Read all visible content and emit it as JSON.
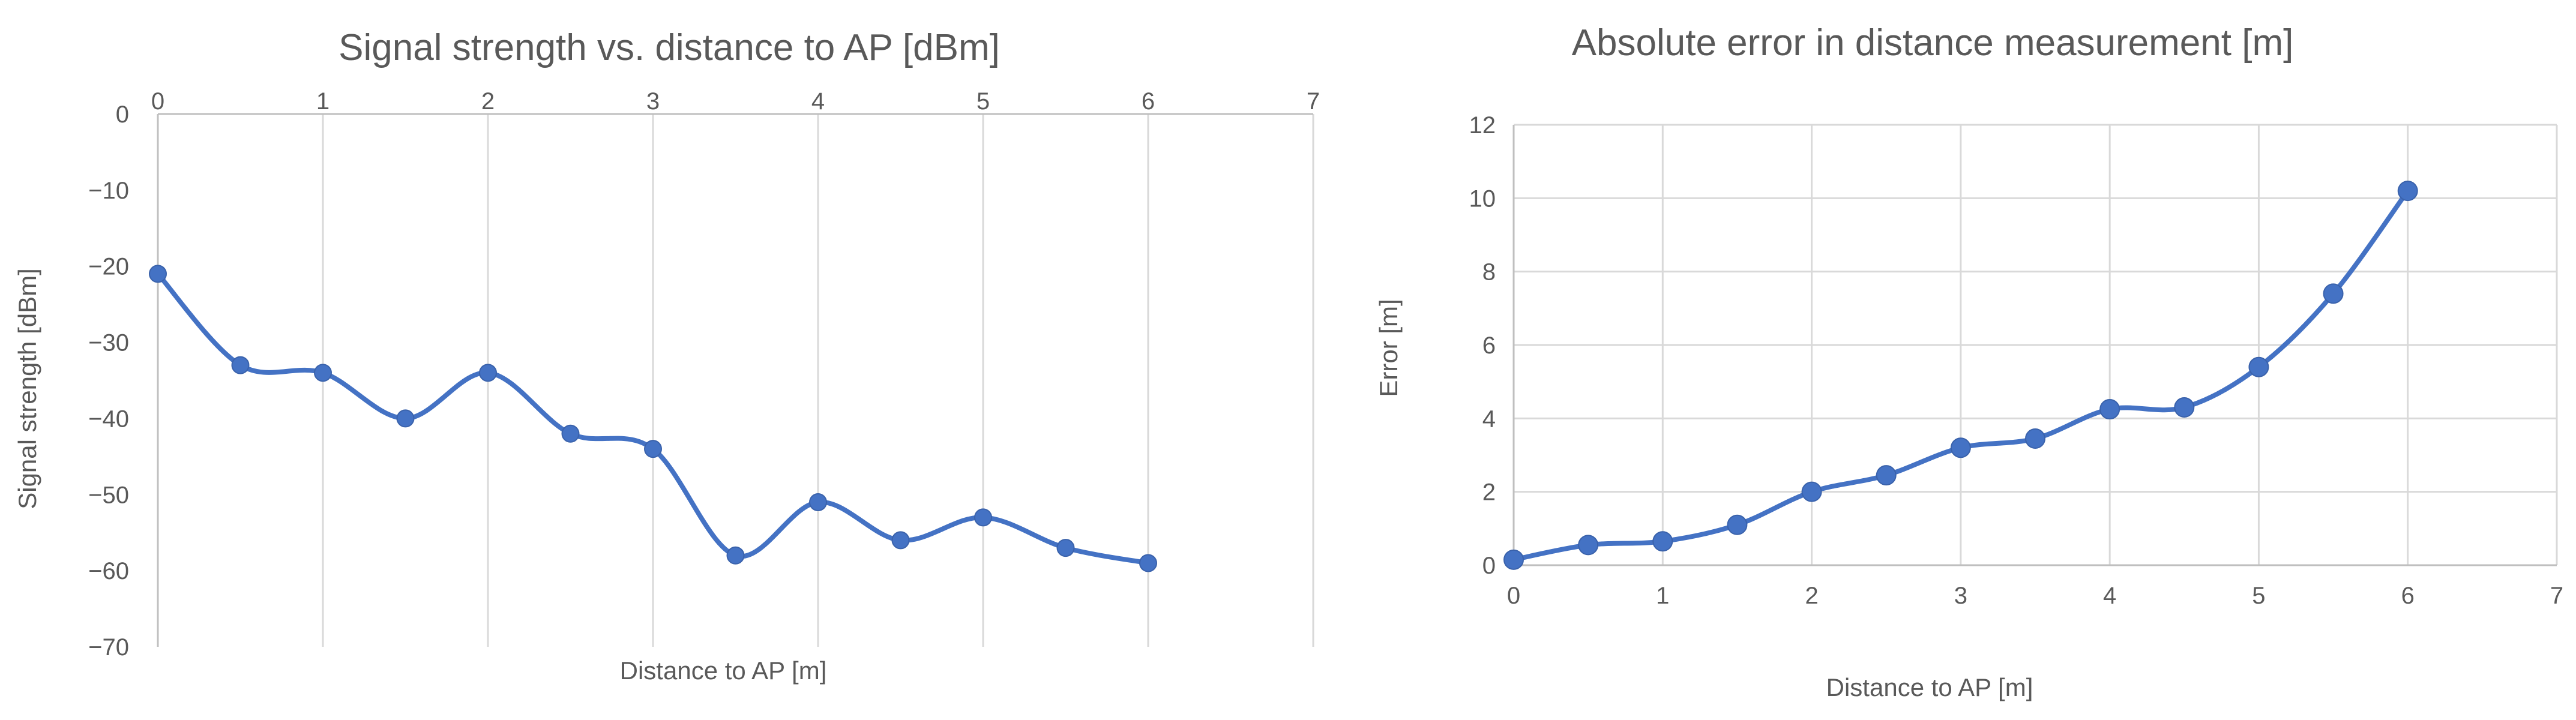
{
  "chart_data": [
    {
      "type": "line",
      "title": "Signal strength vs. distance to AP [dBm]",
      "xlabel": "Distance to AP [m]",
      "ylabel": "Signal strength [dBm]",
      "xlim": [
        0,
        7
      ],
      "ylim": [
        -70,
        0
      ],
      "xticks": [
        0,
        1,
        2,
        3,
        4,
        5,
        6,
        7
      ],
      "yticks": [
        0,
        -10,
        -20,
        -30,
        -40,
        -50,
        -60,
        -70
      ],
      "ytick_labels": [
        "0",
        "−10",
        "−20",
        "−30",
        "−40",
        "−50",
        "−60",
        "−70"
      ],
      "x_axis_position": "top",
      "grid": "vertical",
      "smooth": true,
      "color": "#4472c4",
      "x": [
        0,
        0.5,
        1,
        1.5,
        2,
        2.5,
        3,
        3.5,
        4,
        4.5,
        5,
        5.5,
        6
      ],
      "values": [
        -21,
        -33,
        -34,
        -40,
        -34,
        -42,
        -44,
        -58,
        -51,
        -56,
        -53,
        -57,
        -59
      ]
    },
    {
      "type": "line",
      "title": "Absolute error in distance measurement [m]",
      "xlabel": "Distance to AP [m]",
      "ylabel": "Error [m]",
      "xlim": [
        0,
        7
      ],
      "ylim": [
        0,
        12
      ],
      "xticks": [
        0,
        1,
        2,
        3,
        4,
        5,
        6,
        7
      ],
      "yticks": [
        0,
        2,
        4,
        6,
        8,
        10,
        12
      ],
      "ytick_labels": [
        "0",
        "2",
        "4",
        "6",
        "8",
        "10",
        "12"
      ],
      "x_axis_position": "bottom",
      "grid": "both",
      "smooth": true,
      "color": "#4472c4",
      "x": [
        0,
        0.5,
        1,
        1.5,
        2,
        2.5,
        3,
        3.5,
        4,
        4.5,
        5,
        5.5,
        6
      ],
      "values": [
        0.15,
        0.55,
        0.65,
        1.1,
        2.0,
        2.45,
        3.2,
        3.45,
        4.25,
        4.3,
        5.4,
        7.4,
        10.2
      ]
    }
  ]
}
